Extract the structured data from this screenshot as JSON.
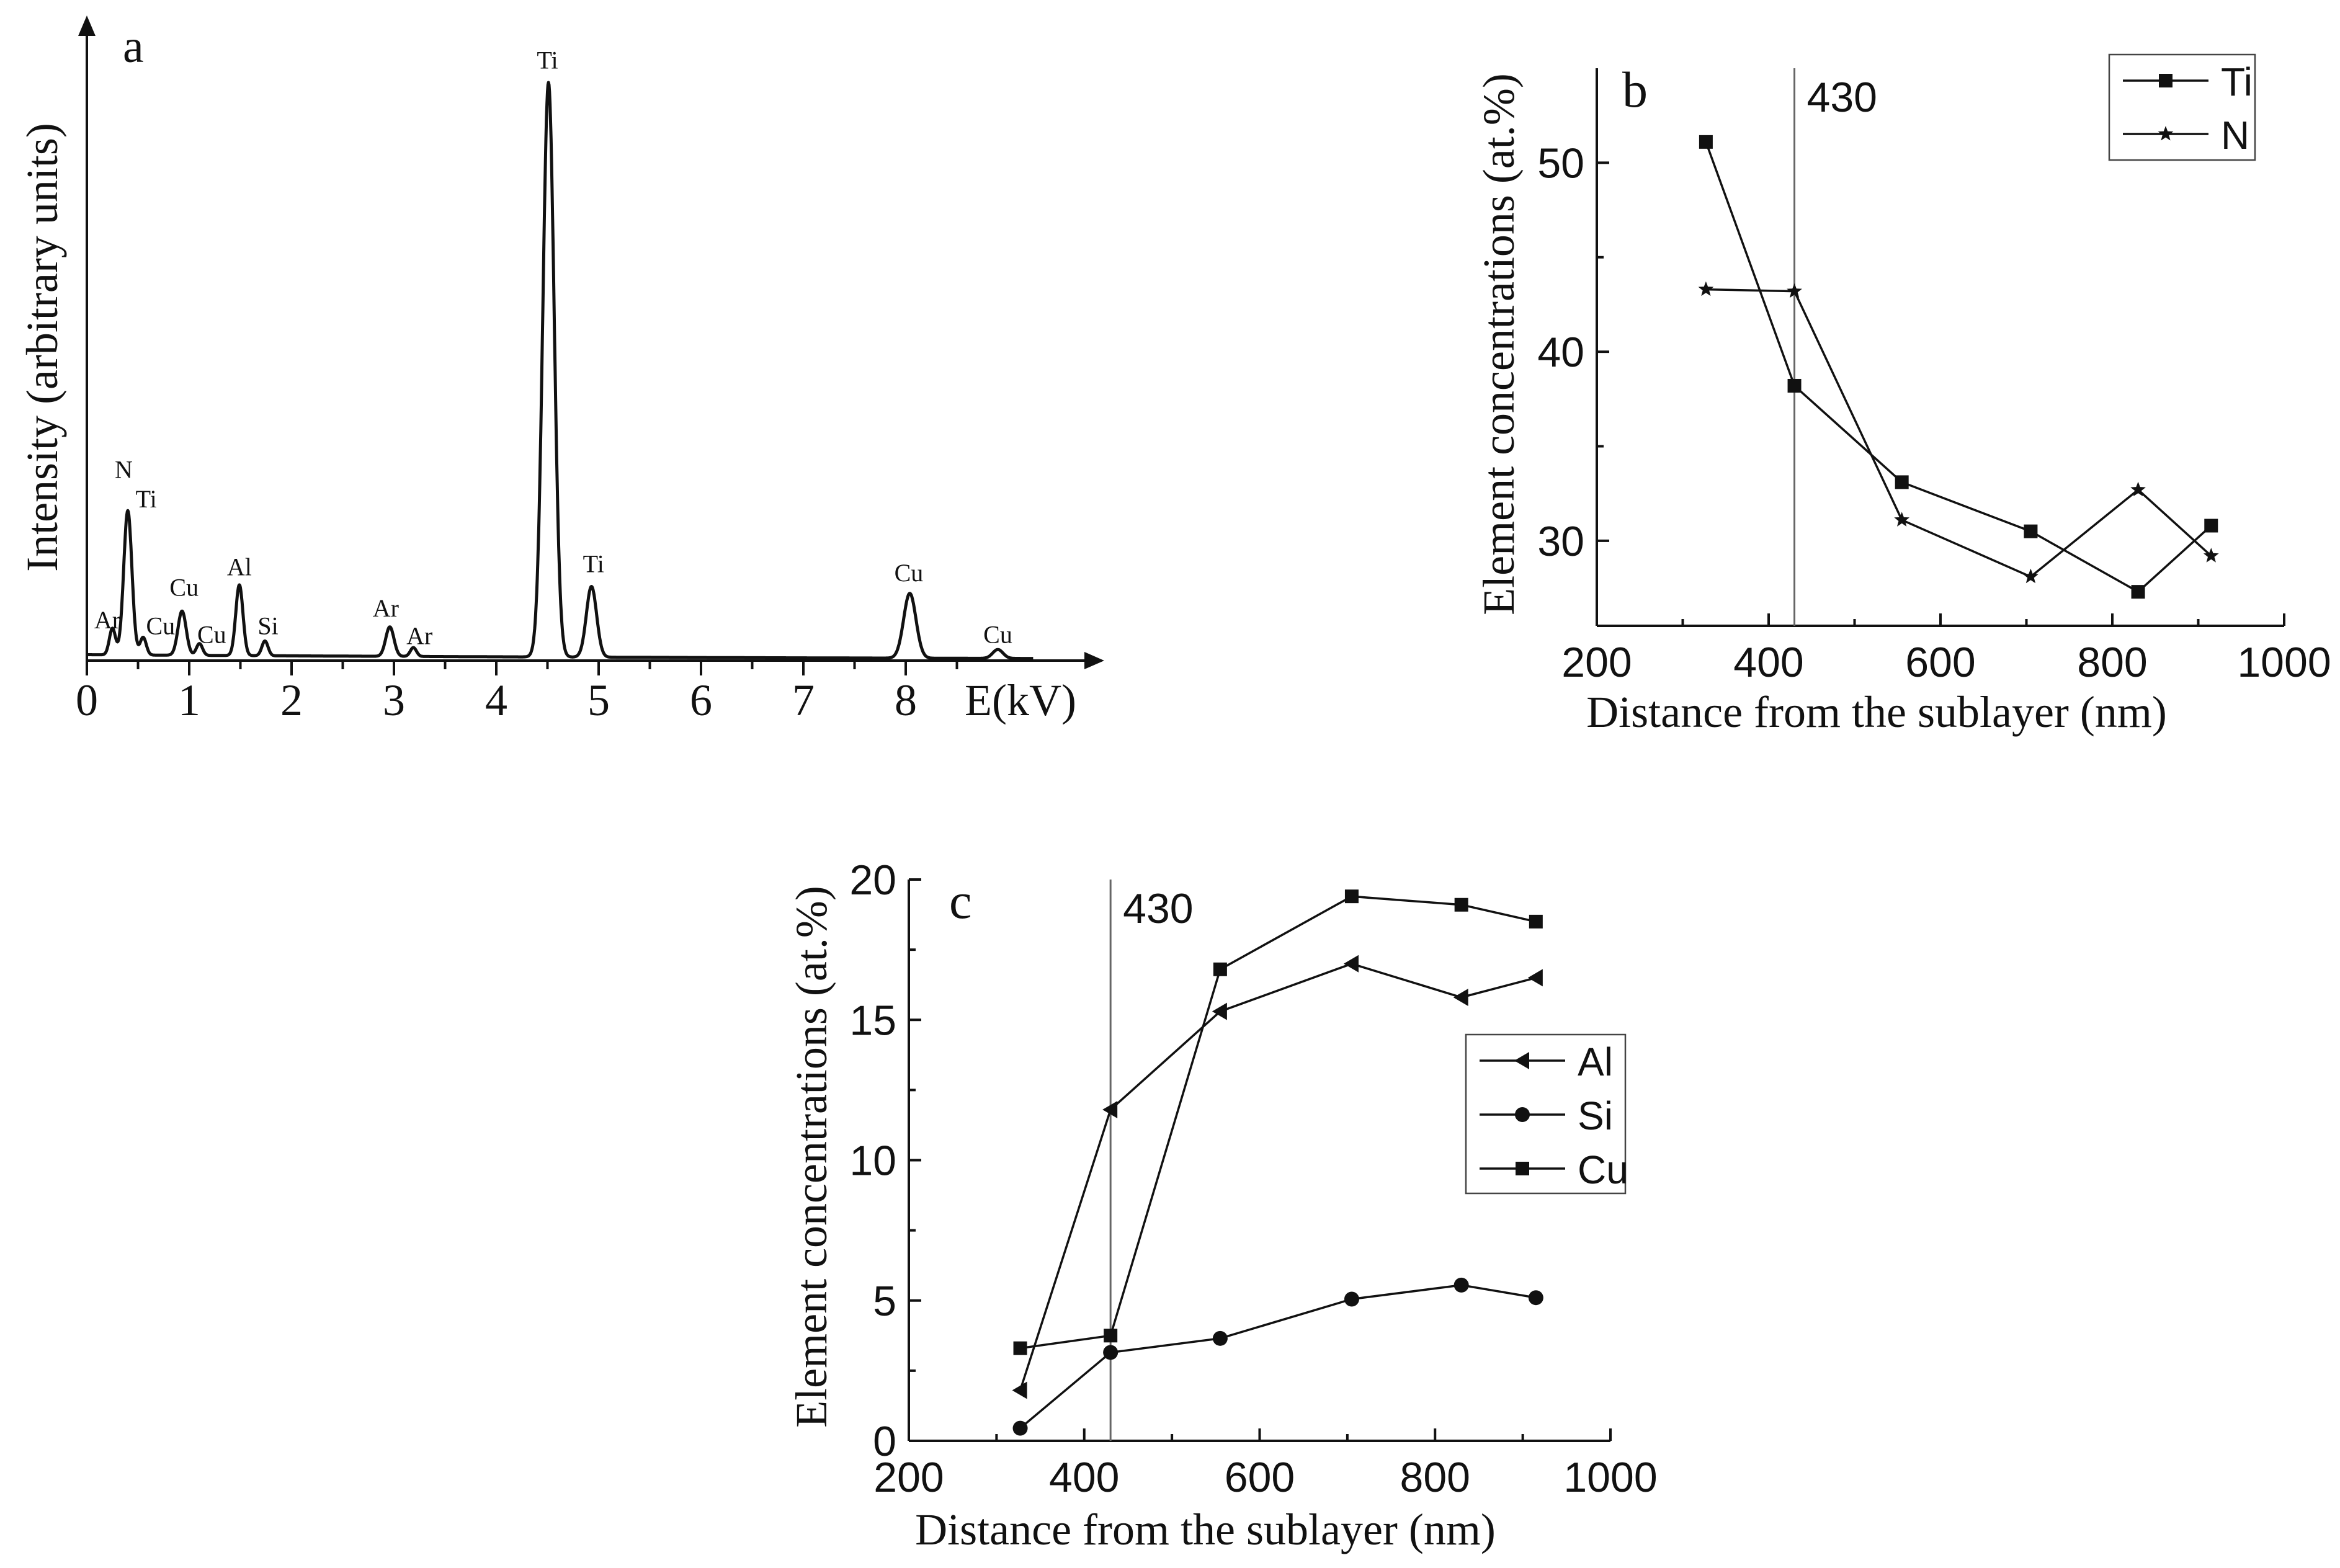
{
  "chart_data": [
    {
      "type": "line",
      "panel": "a",
      "title": "",
      "xlabel": "E(kV)",
      "ylabel": "Intensity (arbitrary units)",
      "xlim": [
        0,
        10
      ],
      "x_ticks": [
        0,
        1,
        2,
        3,
        4,
        5,
        6,
        7,
        8
      ],
      "xlabel_position": 9,
      "baseline": 0.01,
      "peaks": [
        {
          "label": "Ar",
          "x": 0.25,
          "height": 0.045,
          "width": 0.03
        },
        {
          "label": "N Ti",
          "x": 0.4,
          "height": 0.245,
          "width": 0.04
        },
        {
          "label": "Cu",
          "x": 0.55,
          "height": 0.03,
          "width": 0.03
        },
        {
          "label": "Cu",
          "x": 0.93,
          "height": 0.075,
          "width": 0.04
        },
        {
          "label": "Cu",
          "x": 1.1,
          "height": 0.02,
          "width": 0.03
        },
        {
          "label": "Al",
          "x": 1.49,
          "height": 0.12,
          "width": 0.035
        },
        {
          "label": "Si",
          "x": 1.74,
          "height": 0.025,
          "width": 0.03
        },
        {
          "label": "Ar",
          "x": 2.96,
          "height": 0.05,
          "width": 0.04
        },
        {
          "label": "Ar",
          "x": 3.19,
          "height": 0.015,
          "width": 0.03
        },
        {
          "label": "Ti",
          "x": 4.51,
          "height": 0.975,
          "width": 0.055
        },
        {
          "label": "Ti",
          "x": 4.93,
          "height": 0.12,
          "width": 0.05
        },
        {
          "label": "Cu",
          "x": 8.04,
          "height": 0.11,
          "width": 0.06
        },
        {
          "label": "Cu",
          "x": 8.9,
          "height": 0.015,
          "width": 0.05
        }
      ],
      "peak_labels": [
        {
          "text": "Ar",
          "x": 0.2,
          "y": 0.055
        },
        {
          "text": "N",
          "x": 0.36,
          "y": 0.31
        },
        {
          "text": "Ti",
          "x": 0.58,
          "y": 0.26
        },
        {
          "text": "Cu",
          "x": 0.72,
          "y": 0.045
        },
        {
          "text": "Cu",
          "x": 0.95,
          "y": 0.11
        },
        {
          "text": "Cu",
          "x": 1.22,
          "y": 0.03
        },
        {
          "text": "Al",
          "x": 1.49,
          "y": 0.145
        },
        {
          "text": "Si",
          "x": 1.77,
          "y": 0.045
        },
        {
          "text": "Ar",
          "x": 2.92,
          "y": 0.075
        },
        {
          "text": "Ar",
          "x": 3.25,
          "y": 0.028
        },
        {
          "text": "Ti",
          "x": 4.5,
          "y": 1.005
        },
        {
          "text": "Ti",
          "x": 4.95,
          "y": 0.15
        },
        {
          "text": "Cu",
          "x": 8.03,
          "y": 0.135
        },
        {
          "text": "Cu",
          "x": 8.9,
          "y": 0.03
        }
      ]
    },
    {
      "type": "line",
      "panel": "b",
      "title": "",
      "xlabel": "Distance from the sublayer (nm)",
      "ylabel": "Element concentrations (at.%)",
      "xlim": [
        200,
        1000
      ],
      "ylim": [
        25.5,
        55
      ],
      "x_ticks": [
        200,
        400,
        600,
        800,
        1000
      ],
      "y_ticks": [
        30,
        40,
        50
      ],
      "reference_line": {
        "x": 430,
        "label": "430"
      },
      "legend_position": "top-right",
      "series": [
        {
          "name": "Ti",
          "marker": "square",
          "x": [
            327,
            430,
            555,
            705,
            830,
            915
          ],
          "values": [
            51.1,
            38.2,
            33.1,
            30.5,
            27.3,
            30.8
          ]
        },
        {
          "name": "N",
          "marker": "star",
          "x": [
            327,
            430,
            555,
            705,
            830,
            915
          ],
          "values": [
            43.3,
            43.2,
            31.1,
            28.1,
            32.7,
            29.2
          ]
        }
      ]
    },
    {
      "type": "line",
      "panel": "c",
      "title": "",
      "xlabel": "Distance from the sublayer (nm)",
      "ylabel": "Element concentrations (at.%)",
      "xlim": [
        200,
        1000
      ],
      "ylim": [
        0,
        20
      ],
      "x_ticks": [
        200,
        400,
        600,
        800,
        1000
      ],
      "y_ticks": [
        0,
        5,
        10,
        15,
        20
      ],
      "reference_line": {
        "x": 430,
        "label": "430"
      },
      "legend_position": "middle-right",
      "series": [
        {
          "name": "Al",
          "marker": "triangle-left",
          "x": [
            327,
            430,
            555,
            705,
            830,
            915
          ],
          "values": [
            1.8,
            11.8,
            15.3,
            17.0,
            15.8,
            16.5
          ]
        },
        {
          "name": "Si",
          "marker": "circle",
          "x": [
            327,
            430,
            555,
            705,
            830,
            915
          ],
          "values": [
            0.45,
            3.15,
            3.65,
            5.05,
            5.55,
            5.1
          ]
        },
        {
          "name": "Cu",
          "marker": "square",
          "x": [
            327,
            430,
            555,
            705,
            830,
            915
          ],
          "values": [
            3.3,
            3.75,
            16.8,
            19.4,
            19.1,
            18.5
          ]
        }
      ]
    }
  ],
  "panel_labels": {
    "a": "a",
    "b": "b",
    "c": "c"
  }
}
